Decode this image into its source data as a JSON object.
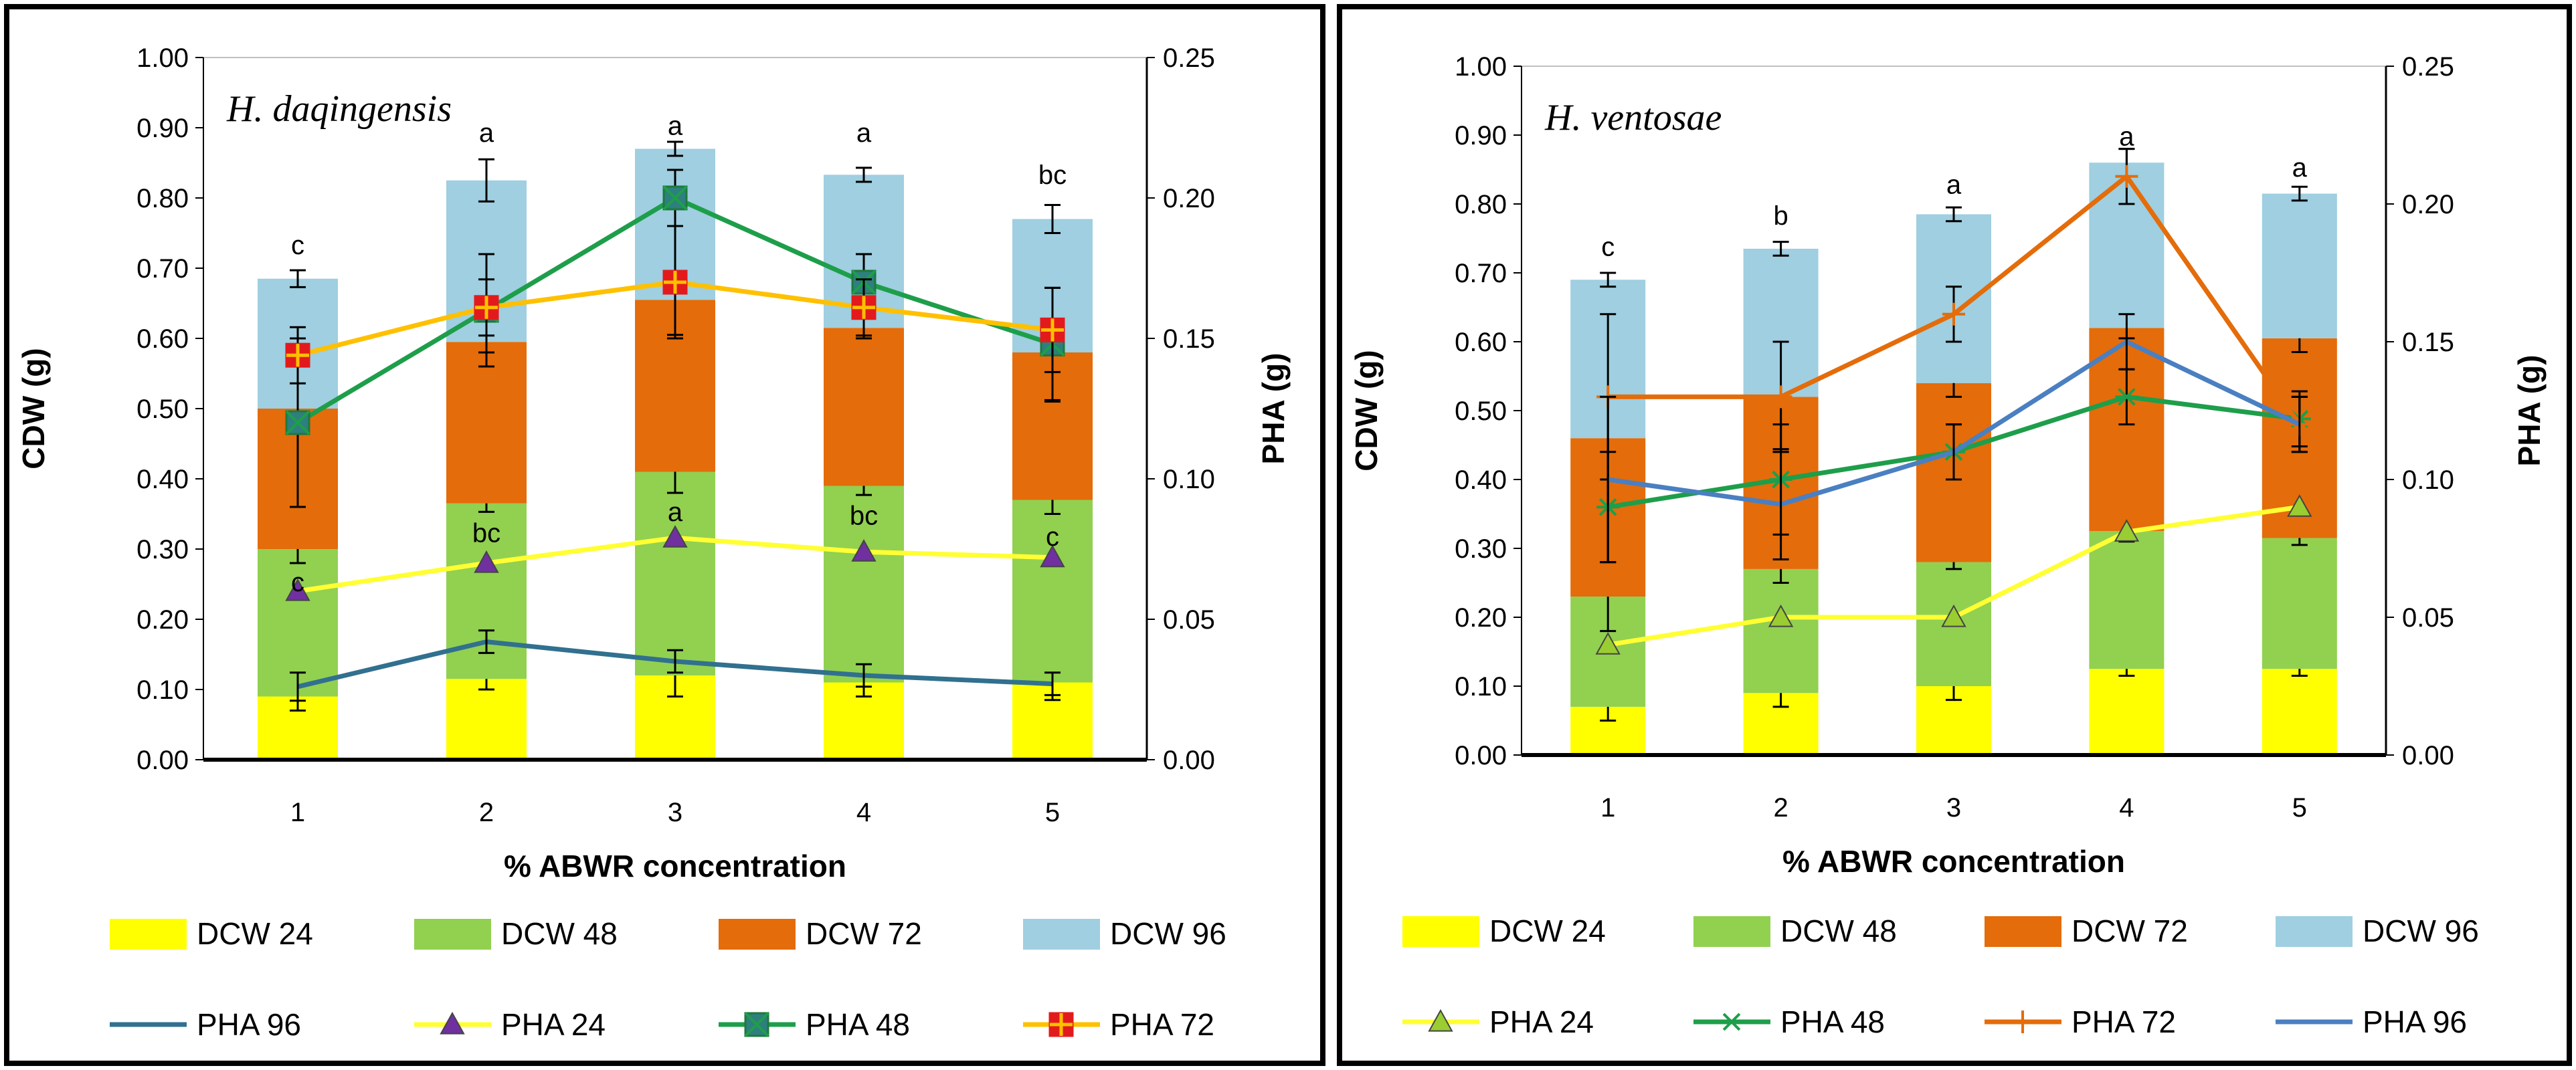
{
  "chart_data": [
    {
      "type": "bar",
      "title": "H. daqingensis",
      "xlabel": "% ABWR concentration",
      "ylabel": "CDW (g)",
      "y2label": "PHA (g)",
      "categories": [
        "1",
        "2",
        "3",
        "4",
        "5"
      ],
      "ylim": [
        0,
        1.0
      ],
      "y2lim": [
        0,
        0.25
      ],
      "yticks": [
        "0.00",
        "0.10",
        "0.20",
        "0.30",
        "0.40",
        "0.50",
        "0.60",
        "0.70",
        "0.80",
        "0.90",
        "1.00"
      ],
      "y2ticks": [
        "0.00",
        "0.05",
        "0.10",
        "0.15",
        "0.20",
        "0.25"
      ],
      "stacked": true,
      "bar_series": [
        {
          "name": "DCW 24",
          "color": "#FFFF00",
          "values": [
            0.09,
            0.115,
            0.12,
            0.11,
            0.11
          ],
          "err": [
            0.02,
            0.015,
            0.03,
            0.02,
            0.025
          ]
        },
        {
          "name": "DCW 48",
          "color": "#92D050",
          "values": [
            0.21,
            0.25,
            0.29,
            0.28,
            0.26
          ],
          "err": [
            0.02,
            0.012,
            0.03,
            0.013,
            0.02
          ]
        },
        {
          "name": "DCW 72",
          "color": "#E46C0A",
          "values": [
            0.2,
            0.23,
            0.245,
            0.225,
            0.21
          ],
          "err": [
            0.02,
            0.015,
            0.05,
            0.015,
            0.07
          ]
        },
        {
          "name": "DCW 96",
          "color": "#9FCFE0",
          "values": [
            0.185,
            0.23,
            0.215,
            0.218,
            0.19
          ],
          "err": [
            0.012,
            0.03,
            0.01,
            0.01,
            0.02
          ]
        }
      ],
      "line_series": [
        {
          "name": "PHA 96",
          "color": "#31708F",
          "marker": "none",
          "values": [
            0.026,
            0.042,
            0.035,
            0.03,
            0.027
          ],
          "err": [
            0.005,
            0.004,
            0.004,
            0.004,
            0.004
          ]
        },
        {
          "name": "PHA 24",
          "color": "#FFFF33",
          "marker": "triangle",
          "marker_fill": "#7030A0",
          "values": [
            0.06,
            0.07,
            0.079,
            0.074,
            0.072
          ],
          "err": [
            0,
            0,
            0,
            0,
            0
          ]
        },
        {
          "name": "PHA 48",
          "color": "#1E9E4A",
          "marker": "square-x",
          "marker_fill": "#2E7F7F",
          "values": [
            0.12,
            0.16,
            0.2,
            0.17,
            0.148
          ],
          "err": [
            0.03,
            0.02,
            0.01,
            0.01,
            0.02
          ]
        },
        {
          "name": "PHA 72",
          "color": "#FFC000",
          "marker": "square-plus",
          "marker_fill": "#E31A1C",
          "values": [
            0.144,
            0.161,
            0.17,
            0.161,
            0.153
          ],
          "err": [
            0.01,
            0.01,
            0.02,
            0.01,
            0.015
          ]
        }
      ],
      "significance": [
        {
          "index": 0,
          "value": 0.72,
          "label": "c"
        },
        {
          "index": 1,
          "value": 0.88,
          "label": "a"
        },
        {
          "index": 2,
          "value": 0.89,
          "label": "a"
        },
        {
          "index": 3,
          "value": 0.88,
          "label": "a"
        },
        {
          "index": 4,
          "value": 0.82,
          "label": "bc"
        },
        {
          "index": 0,
          "value": 0.24,
          "label": "c"
        },
        {
          "index": 1,
          "value": 0.31,
          "label": "bc"
        },
        {
          "index": 2,
          "value": 0.34,
          "label": "a"
        },
        {
          "index": 3,
          "value": 0.335,
          "label": "bc"
        },
        {
          "index": 4,
          "value": 0.305,
          "label": "c"
        }
      ],
      "legend_rows": [
        [
          "DCW 24",
          "DCW 48",
          "DCW 72",
          "DCW 96"
        ],
        [
          "PHA 96",
          "PHA 24",
          "PHA 48",
          "PHA 72"
        ]
      ]
    },
    {
      "type": "bar",
      "title": "H. ventosae",
      "xlabel": "% ABWR concentration",
      "ylabel": "CDW (g)",
      "y2label": "PHA (g)",
      "categories": [
        "1",
        "2",
        "3",
        "4",
        "5"
      ],
      "ylim": [
        0,
        1.0
      ],
      "y2lim": [
        0,
        0.25
      ],
      "yticks": [
        "0.00",
        "0.10",
        "0.20",
        "0.30",
        "0.40",
        "0.50",
        "0.60",
        "0.70",
        "0.80",
        "0.90",
        "1.00"
      ],
      "y2ticks": [
        "0.00",
        "0.05",
        "0.10",
        "0.15",
        "0.20",
        "0.25"
      ],
      "stacked": true,
      "bar_series": [
        {
          "name": "DCW 24",
          "color": "#FFFF00",
          "values": [
            0.07,
            0.09,
            0.1,
            0.125,
            0.125
          ],
          "err": [
            0.02,
            0.02,
            0.02,
            0.01,
            0.01
          ]
        },
        {
          "name": "DCW 48",
          "color": "#92D050",
          "values": [
            0.16,
            0.18,
            0.18,
            0.2,
            0.19
          ],
          "err": [
            0.05,
            0.02,
            0.01,
            0.015,
            0.01
          ]
        },
        {
          "name": "DCW 72",
          "color": "#E46C0A",
          "values": [
            0.23,
            0.25,
            0.26,
            0.295,
            0.29
          ],
          "err": [
            0.18,
            0.08,
            0.02,
            0.015,
            0.02
          ]
        },
        {
          "name": "DCW 96",
          "color": "#9FCFE0",
          "values": [
            0.23,
            0.215,
            0.245,
            0.24,
            0.21
          ],
          "err": [
            0.01,
            0.01,
            0.01,
            0.02,
            0.01
          ]
        }
      ],
      "line_series": [
        {
          "name": "PHA 24",
          "color": "#FFFF33",
          "marker": "triangle",
          "marker_fill": "#9ACD32",
          "values": [
            0.04,
            0.05,
            0.05,
            0.081,
            0.09
          ],
          "err": [
            0,
            0,
            0,
            0,
            0
          ]
        },
        {
          "name": "PHA 48",
          "color": "#1E9E4A",
          "marker": "asterisk",
          "marker_fill": "#1E9E4A",
          "values": [
            0.09,
            0.1,
            0.11,
            0.13,
            0.122
          ],
          "err": [
            0.02,
            0.02,
            0.01,
            0.01,
            0.01
          ]
        },
        {
          "name": "PHA 72",
          "color": "#E46C0A",
          "marker": "plus",
          "marker_fill": "#E46C0A",
          "values": [
            0.13,
            0.13,
            0.16,
            0.21,
            0.12
          ],
          "err": [
            0.03,
            0.02,
            0.01,
            0.01,
            0.01
          ]
        },
        {
          "name": "PHA 96",
          "color": "#4A7FC1",
          "marker": "none",
          "marker_fill": "#4A7FC1",
          "values": [
            0.1,
            0.091,
            0.11,
            0.15,
            0.12
          ],
          "err": [
            0.03,
            0.02,
            0.01,
            0.01,
            0.01
          ]
        }
      ],
      "significance": [
        {
          "index": 0,
          "value": 0.725,
          "label": "c"
        },
        {
          "index": 1,
          "value": 0.77,
          "label": "b"
        },
        {
          "index": 2,
          "value": 0.815,
          "label": "a"
        },
        {
          "index": 3,
          "value": 0.885,
          "label": "a"
        },
        {
          "index": 4,
          "value": 0.84,
          "label": "a"
        }
      ],
      "legend_rows": [
        [
          "DCW 24",
          "DCW 48",
          "DCW 72",
          "DCW 96"
        ],
        [
          "PHA 24",
          "PHA 48",
          "PHA 72",
          "PHA 96"
        ]
      ]
    }
  ]
}
